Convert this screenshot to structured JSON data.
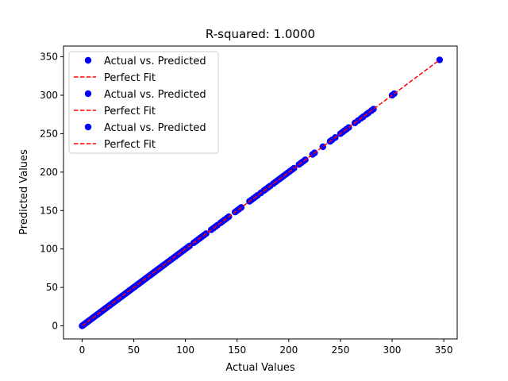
{
  "chart_data": {
    "type": "scatter",
    "title": "R-squared: 1.0000",
    "xlabel": "Actual Values",
    "ylabel": "Predicted Values",
    "xlim": [
      -18,
      363
    ],
    "ylim": [
      -17,
      364
    ],
    "xticks": [
      0,
      50,
      100,
      150,
      200,
      250,
      300,
      350
    ],
    "yticks": [
      0,
      50,
      100,
      150,
      200,
      250,
      300,
      350
    ],
    "grid": false,
    "legend_position": "upper-left",
    "legend": [
      {
        "label": "Actual vs. Predicted",
        "kind": "marker",
        "color": "#0000ff"
      },
      {
        "label": "Perfect Fit",
        "kind": "line",
        "color": "#ff0000"
      },
      {
        "label": "Actual vs. Predicted",
        "kind": "marker",
        "color": "#0000ff"
      },
      {
        "label": "Perfect Fit",
        "kind": "line",
        "color": "#ff0000"
      },
      {
        "label": "Actual vs. Predicted",
        "kind": "marker",
        "color": "#0000ff"
      },
      {
        "label": "Perfect Fit",
        "kind": "line",
        "color": "#ff0000"
      }
    ],
    "series": [
      {
        "name": "Actual vs. Predicted",
        "kind": "scatter",
        "color": "#0000ff",
        "points": [
          [
            0,
            0
          ],
          [
            1,
            1
          ],
          [
            2,
            2
          ],
          [
            3,
            3
          ],
          [
            4,
            4
          ],
          [
            5,
            5
          ],
          [
            6,
            6
          ],
          [
            7,
            7
          ],
          [
            8,
            8
          ],
          [
            9,
            9
          ],
          [
            10,
            10
          ],
          [
            11,
            11
          ],
          [
            12,
            12
          ],
          [
            13,
            13
          ],
          [
            14,
            14
          ],
          [
            15,
            15
          ],
          [
            16,
            16
          ],
          [
            17,
            17
          ],
          [
            18,
            18
          ],
          [
            19,
            19
          ],
          [
            20,
            20
          ],
          [
            21,
            21
          ],
          [
            22,
            22
          ],
          [
            23,
            23
          ],
          [
            24,
            24
          ],
          [
            25,
            25
          ],
          [
            26,
            26
          ],
          [
            27,
            27
          ],
          [
            28,
            28
          ],
          [
            29,
            29
          ],
          [
            30,
            30
          ],
          [
            31,
            31
          ],
          [
            32,
            32
          ],
          [
            33,
            33
          ],
          [
            34,
            34
          ],
          [
            35,
            35
          ],
          [
            36,
            36
          ],
          [
            37,
            37
          ],
          [
            38,
            38
          ],
          [
            39,
            39
          ],
          [
            40,
            40
          ],
          [
            41,
            41
          ],
          [
            42,
            42
          ],
          [
            43,
            43
          ],
          [
            44,
            44
          ],
          [
            45,
            45
          ],
          [
            46,
            46
          ],
          [
            47,
            47
          ],
          [
            48,
            48
          ],
          [
            49,
            49
          ],
          [
            50,
            50
          ],
          [
            51,
            51
          ],
          [
            52,
            52
          ],
          [
            53,
            53
          ],
          [
            54,
            54
          ],
          [
            55,
            55
          ],
          [
            56,
            56
          ],
          [
            57,
            57
          ],
          [
            58,
            58
          ],
          [
            59,
            59
          ],
          [
            60,
            60
          ],
          [
            61,
            61
          ],
          [
            62,
            62
          ],
          [
            63,
            63
          ],
          [
            64,
            64
          ],
          [
            65,
            65
          ],
          [
            66,
            66
          ],
          [
            67,
            67
          ],
          [
            68,
            68
          ],
          [
            69,
            69
          ],
          [
            70,
            70
          ],
          [
            71,
            71
          ],
          [
            72,
            72
          ],
          [
            73,
            73
          ],
          [
            74,
            74
          ],
          [
            75,
            75
          ],
          [
            76,
            76
          ],
          [
            77,
            77
          ],
          [
            78,
            78
          ],
          [
            79,
            79
          ],
          [
            80,
            80
          ],
          [
            82,
            82
          ],
          [
            84,
            84
          ],
          [
            86,
            86
          ],
          [
            88,
            88
          ],
          [
            90,
            90
          ],
          [
            92,
            92
          ],
          [
            94,
            94
          ],
          [
            96,
            96
          ],
          [
            98,
            98
          ],
          [
            100,
            100
          ],
          [
            102,
            102
          ],
          [
            104,
            104
          ],
          [
            108,
            108
          ],
          [
            110,
            110
          ],
          [
            112,
            112
          ],
          [
            114,
            114
          ],
          [
            116,
            116
          ],
          [
            118,
            118
          ],
          [
            120,
            120
          ],
          [
            125,
            125
          ],
          [
            127,
            127
          ],
          [
            129,
            129
          ],
          [
            131,
            131
          ],
          [
            134,
            134
          ],
          [
            136,
            136
          ],
          [
            138,
            138
          ],
          [
            140,
            140
          ],
          [
            142,
            142
          ],
          [
            148,
            148
          ],
          [
            150,
            150
          ],
          [
            152,
            152
          ],
          [
            154,
            154
          ],
          [
            162,
            162
          ],
          [
            164,
            164
          ],
          [
            166,
            166
          ],
          [
            168,
            168
          ],
          [
            170,
            170
          ],
          [
            173,
            173
          ],
          [
            176,
            176
          ],
          [
            178,
            178
          ],
          [
            180,
            180
          ],
          [
            182,
            182
          ],
          [
            185,
            185
          ],
          [
            187,
            187
          ],
          [
            189,
            189
          ],
          [
            191,
            191
          ],
          [
            193,
            193
          ],
          [
            195,
            195
          ],
          [
            197,
            197
          ],
          [
            199,
            199
          ],
          [
            201,
            201
          ],
          [
            203,
            203
          ],
          [
            205,
            205
          ],
          [
            210,
            210
          ],
          [
            212,
            212
          ],
          [
            214,
            214
          ],
          [
            216,
            216
          ],
          [
            223,
            223
          ],
          [
            225,
            225
          ],
          [
            233,
            233
          ],
          [
            240,
            240
          ],
          [
            242,
            242
          ],
          [
            245,
            245
          ],
          [
            250,
            250
          ],
          [
            252,
            252
          ],
          [
            254,
            254
          ],
          [
            256,
            256
          ],
          [
            258,
            258
          ],
          [
            264,
            264
          ],
          [
            267,
            267
          ],
          [
            270,
            270
          ],
          [
            272,
            272
          ],
          [
            275,
            275
          ],
          [
            277,
            277
          ],
          [
            280,
            280
          ],
          [
            282,
            282
          ],
          [
            300,
            300
          ],
          [
            302,
            302
          ],
          [
            346,
            346
          ]
        ]
      },
      {
        "name": "Perfect Fit",
        "kind": "line",
        "style": "dashed",
        "color": "#ff0000",
        "points": [
          [
            0,
            0
          ],
          [
            346,
            346
          ]
        ]
      }
    ]
  }
}
